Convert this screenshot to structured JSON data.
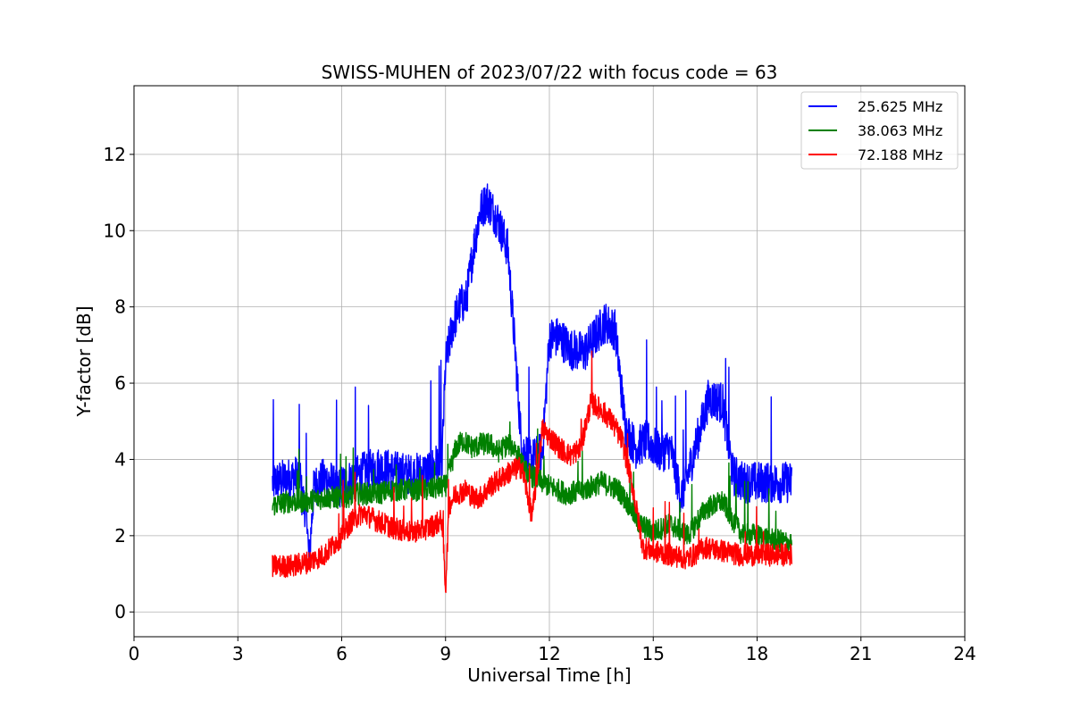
{
  "chart_data": {
    "type": "line",
    "title": "SWISS-MUHEN of 2023/07/22 with focus code = 63",
    "xlabel": "Universal Time [h]",
    "ylabel": "Y-factor [dB]",
    "xlim": [
      0,
      24
    ],
    "ylim": [
      -0.65,
      13.8
    ],
    "xticks": [
      0,
      3,
      6,
      9,
      12,
      15,
      18,
      21,
      24
    ],
    "xtick_labels": [
      "0",
      "3",
      "6",
      "9",
      "12",
      "15",
      "18",
      "21",
      "24"
    ],
    "yticks": [
      0,
      2,
      4,
      6,
      8,
      10,
      12
    ],
    "ytick_labels": [
      "0",
      "2",
      "4",
      "6",
      "8",
      "10",
      "12"
    ],
    "grid": true,
    "legend_position": "top-right",
    "series": [
      {
        "name": "25.625 MHz",
        "color": "#0000ff",
        "x": [
          4.0,
          4.5,
          4.8,
          4.85,
          5.0,
          5.05,
          5.2,
          5.5,
          5.75,
          5.8,
          6.0,
          6.3,
          6.5,
          7.0,
          7.5,
          8.0,
          8.5,
          8.9,
          9.0,
          9.2,
          9.4,
          9.6,
          9.8,
          10.0,
          10.2,
          10.5,
          10.8,
          11.0,
          11.2,
          11.5,
          11.8,
          12.0,
          12.3,
          12.6,
          13.0,
          13.3,
          13.6,
          13.9,
          14.2,
          14.5,
          14.8,
          15.2,
          15.5,
          15.8,
          16.0,
          16.3,
          16.6,
          17.0,
          17.3,
          17.6,
          18.0,
          18.5,
          19.0
        ],
        "y": [
          3.4,
          3.5,
          3.6,
          3.0,
          2.6,
          1.2,
          3.3,
          3.5,
          3.4,
          3.2,
          3.3,
          3.5,
          3.6,
          3.8,
          3.7,
          3.6,
          3.7,
          4.0,
          6.5,
          7.5,
          8.0,
          8.2,
          9.5,
          10.5,
          10.8,
          10.3,
          9.5,
          7.0,
          4.3,
          4.0,
          4.2,
          7.2,
          7.2,
          6.9,
          6.8,
          7.2,
          7.6,
          7.4,
          4.8,
          4.3,
          4.5,
          4.2,
          4.3,
          3.0,
          3.6,
          4.6,
          5.6,
          5.5,
          3.6,
          3.4,
          3.4,
          3.4,
          3.4
        ]
      },
      {
        "name": "38.063 MHz",
        "color": "#008000",
        "x": [
          4.0,
          4.5,
          5.0,
          5.5,
          6.0,
          6.5,
          7.0,
          7.5,
          8.0,
          8.5,
          9.0,
          9.3,
          9.5,
          9.8,
          10.0,
          10.3,
          10.5,
          10.8,
          11.0,
          11.3,
          11.6,
          12.0,
          12.5,
          13.0,
          13.5,
          14.0,
          14.3,
          14.6,
          15.0,
          15.5,
          16.0,
          16.5,
          17.0,
          17.5,
          18.0,
          18.5,
          19.0
        ],
        "y": [
          2.8,
          2.9,
          2.9,
          3.0,
          3.0,
          3.1,
          3.1,
          3.2,
          3.2,
          3.2,
          3.3,
          4.3,
          4.5,
          4.3,
          4.4,
          4.4,
          4.2,
          4.4,
          4.3,
          3.7,
          3.5,
          3.3,
          3.1,
          3.2,
          3.4,
          3.2,
          2.8,
          2.3,
          2.1,
          2.3,
          2.0,
          2.7,
          2.9,
          2.1,
          2.0,
          1.9,
          1.8
        ]
      },
      {
        "name": "72.188 MHz",
        "color": "#ff0000",
        "x": [
          4.0,
          4.5,
          5.0,
          5.5,
          6.0,
          6.3,
          6.6,
          7.0,
          7.5,
          8.0,
          8.5,
          8.9,
          9.0,
          9.1,
          9.3,
          9.6,
          9.8,
          10.0,
          10.3,
          10.6,
          10.9,
          11.2,
          11.5,
          11.8,
          12.0,
          12.3,
          12.6,
          12.9,
          13.2,
          13.5,
          13.8,
          14.1,
          14.4,
          14.7,
          15.0,
          15.5,
          16.0,
          16.5,
          17.0,
          17.5,
          18.0,
          18.5,
          19.0
        ],
        "y": [
          1.2,
          1.2,
          1.3,
          1.5,
          2.0,
          2.4,
          2.6,
          2.4,
          2.2,
          2.1,
          2.2,
          2.4,
          0.6,
          2.8,
          3.1,
          3.2,
          3.0,
          3.0,
          3.3,
          3.5,
          3.7,
          3.8,
          2.5,
          4.8,
          4.6,
          4.3,
          4.1,
          4.3,
          5.5,
          5.3,
          5.0,
          4.5,
          3.3,
          1.7,
          1.6,
          1.5,
          1.4,
          1.7,
          1.6,
          1.5,
          1.5,
          1.5,
          1.5
        ]
      }
    ]
  }
}
